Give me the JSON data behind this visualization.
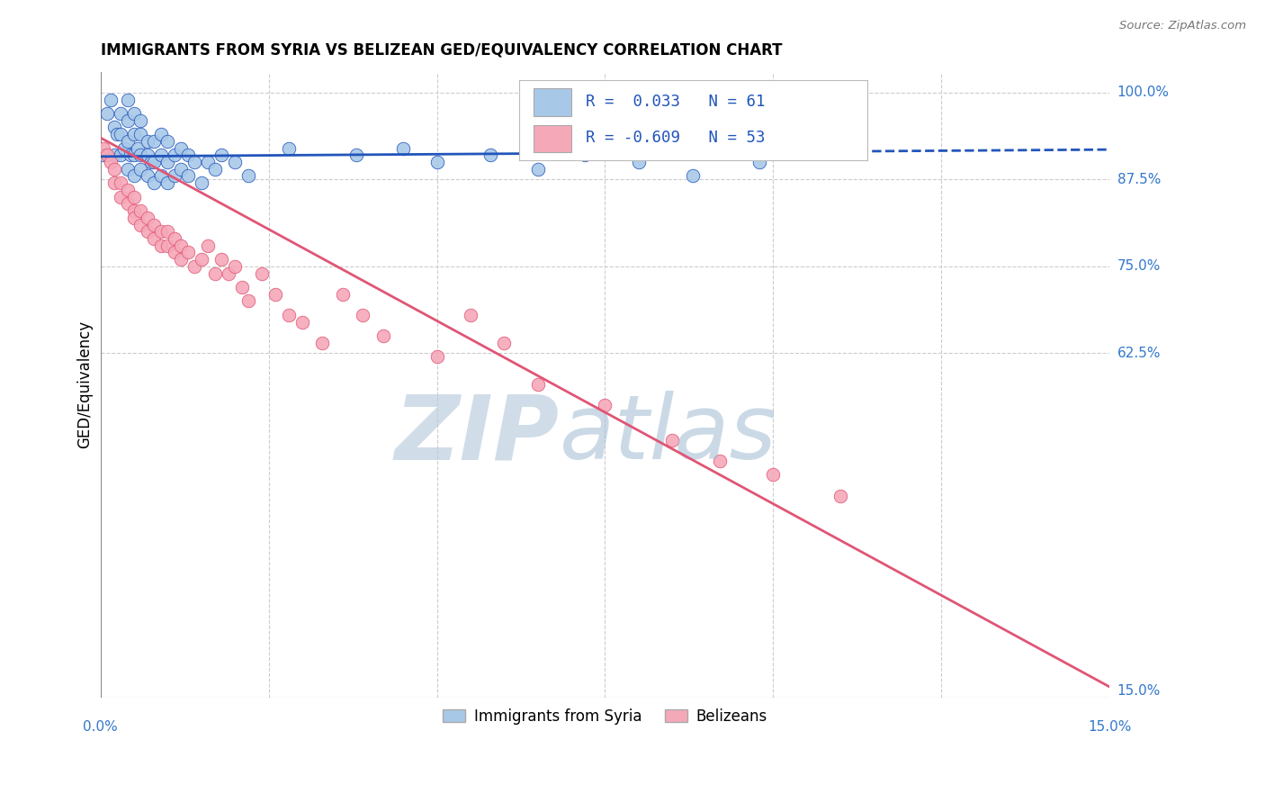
{
  "title": "IMMIGRANTS FROM SYRIA VS BELIZEAN GED/EQUIVALENCY CORRELATION CHART",
  "source": "Source: ZipAtlas.com",
  "ylabel": "GED/Equivalency",
  "xmin": 0.0,
  "xmax": 0.15,
  "ymin": 0.13,
  "ymax": 1.03,
  "color_syria": "#a8c8e8",
  "color_belize": "#f5a8b8",
  "color_syria_line": "#2255bb",
  "color_belize_line": "#e05575",
  "syria_r": 0.033,
  "syria_n": 61,
  "belize_r": -0.609,
  "belize_n": 53,
  "syria_line_y_at_0": 0.908,
  "syria_line_y_at_015": 0.918,
  "belize_line_y_at_0": 0.935,
  "belize_line_y_at_015": 0.145,
  "syria_scatter_x": [
    0.0005,
    0.001,
    0.0015,
    0.002,
    0.002,
    0.0025,
    0.003,
    0.003,
    0.003,
    0.0035,
    0.004,
    0.004,
    0.004,
    0.004,
    0.0045,
    0.005,
    0.005,
    0.005,
    0.005,
    0.0055,
    0.006,
    0.006,
    0.006,
    0.006,
    0.007,
    0.007,
    0.007,
    0.0075,
    0.008,
    0.008,
    0.008,
    0.009,
    0.009,
    0.009,
    0.01,
    0.01,
    0.01,
    0.011,
    0.011,
    0.012,
    0.012,
    0.013,
    0.013,
    0.014,
    0.015,
    0.016,
    0.017,
    0.018,
    0.02,
    0.022,
    0.028,
    0.038,
    0.045,
    0.05,
    0.058,
    0.065,
    0.072,
    0.08,
    0.088,
    0.098,
    0.11
  ],
  "syria_scatter_y": [
    0.91,
    0.97,
    0.99,
    0.95,
    0.91,
    0.94,
    0.91,
    0.94,
    0.97,
    0.92,
    0.89,
    0.93,
    0.96,
    0.99,
    0.91,
    0.88,
    0.91,
    0.94,
    0.97,
    0.92,
    0.89,
    0.91,
    0.94,
    0.96,
    0.88,
    0.91,
    0.93,
    0.9,
    0.87,
    0.9,
    0.93,
    0.88,
    0.91,
    0.94,
    0.87,
    0.9,
    0.93,
    0.88,
    0.91,
    0.89,
    0.92,
    0.88,
    0.91,
    0.9,
    0.87,
    0.9,
    0.89,
    0.91,
    0.9,
    0.88,
    0.92,
    0.91,
    0.92,
    0.9,
    0.91,
    0.89,
    0.91,
    0.9,
    0.88,
    0.9,
    0.92
  ],
  "belize_scatter_x": [
    0.0005,
    0.001,
    0.0015,
    0.002,
    0.002,
    0.003,
    0.003,
    0.004,
    0.004,
    0.005,
    0.005,
    0.005,
    0.006,
    0.006,
    0.007,
    0.007,
    0.008,
    0.008,
    0.009,
    0.009,
    0.01,
    0.01,
    0.011,
    0.011,
    0.012,
    0.012,
    0.013,
    0.014,
    0.015,
    0.016,
    0.017,
    0.018,
    0.019,
    0.02,
    0.021,
    0.022,
    0.024,
    0.026,
    0.028,
    0.03,
    0.033,
    0.036,
    0.039,
    0.042,
    0.05,
    0.055,
    0.06,
    0.065,
    0.075,
    0.085,
    0.092,
    0.1,
    0.11
  ],
  "belize_scatter_y": [
    0.92,
    0.91,
    0.9,
    0.89,
    0.87,
    0.85,
    0.87,
    0.84,
    0.86,
    0.83,
    0.85,
    0.82,
    0.81,
    0.83,
    0.8,
    0.82,
    0.79,
    0.81,
    0.78,
    0.8,
    0.78,
    0.8,
    0.77,
    0.79,
    0.76,
    0.78,
    0.77,
    0.75,
    0.76,
    0.78,
    0.74,
    0.76,
    0.74,
    0.75,
    0.72,
    0.7,
    0.74,
    0.71,
    0.68,
    0.67,
    0.64,
    0.71,
    0.68,
    0.65,
    0.62,
    0.68,
    0.64,
    0.58,
    0.55,
    0.5,
    0.47,
    0.45,
    0.42
  ]
}
